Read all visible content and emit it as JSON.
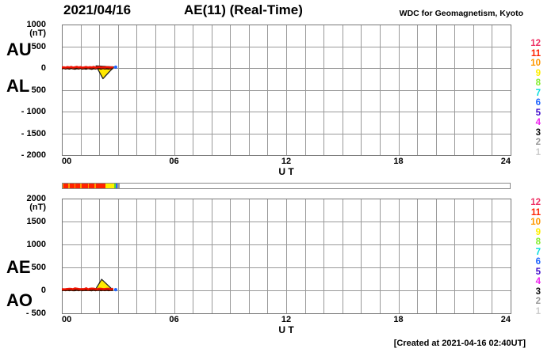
{
  "header": {
    "date": "2021/04/16",
    "title": "AE(11) (Real-Time)",
    "source": "WDC for Geomagnetism, Kyoto"
  },
  "footer": {
    "created": "[Created at 2021-04-16 02:40UT]"
  },
  "axis": {
    "x_ticks": [
      "00",
      "06",
      "12",
      "18",
      "24"
    ],
    "x_label": "U T",
    "unit_label": "(nT)"
  },
  "legend": {
    "station_counts": [
      {
        "n": "12",
        "color": "#ee3366"
      },
      {
        "n": "11",
        "color": "#ff2200"
      },
      {
        "n": "10",
        "color": "#ff9900"
      },
      {
        "n": "9",
        "color": "#ffee00"
      },
      {
        "n": "8",
        "color": "#88ee33"
      },
      {
        "n": "7",
        "color": "#00dddd"
      },
      {
        "n": "6",
        "color": "#2266ff"
      },
      {
        "n": "5",
        "color": "#4411cc"
      },
      {
        "n": "4",
        "color": "#ee22ee"
      },
      {
        "n": "3",
        "color": "#111111"
      },
      {
        "n": "2",
        "color": "#999999"
      },
      {
        "n": "1",
        "color": "#cccccc"
      }
    ]
  },
  "panels": [
    {
      "label_top": "AU",
      "label_bottom": "AL",
      "ymax": 1000,
      "ymin": -2000,
      "ystep": 500,
      "yticks": [
        {
          "v": 1000,
          "t": "1000"
        },
        {
          "v": 500,
          "t": "500"
        },
        {
          "v": 0,
          "t": "0"
        },
        {
          "v": -500,
          "t": "- 500"
        },
        {
          "v": -1000,
          "t": "- 1000"
        },
        {
          "v": -1500,
          "t": "- 1500"
        },
        {
          "v": -2000,
          "t": "- 2000"
        }
      ]
    },
    {
      "label_top": "AE",
      "label_bottom": "AO",
      "ymax": 2000,
      "ymin": -500,
      "ystep": 500,
      "yticks": [
        {
          "v": 2000,
          "t": "2000"
        },
        {
          "v": 1500,
          "t": "1500"
        },
        {
          "v": 1000,
          "t": "1000"
        },
        {
          "v": 500,
          "t": "500"
        },
        {
          "v": 0,
          "t": "0"
        },
        {
          "v": -500,
          "t": "- 500"
        }
      ]
    }
  ],
  "station_bar": {
    "segments": [
      {
        "c": "#ff9900",
        "f": 0.0,
        "t": 0.06
      },
      {
        "c": "#ff2200",
        "f": 0.06,
        "t": 0.3
      },
      {
        "c": "#ff9900",
        "f": 0.3,
        "t": 0.38
      },
      {
        "c": "#ff2200",
        "f": 0.38,
        "t": 0.62
      },
      {
        "c": "#ff9900",
        "f": 0.62,
        "t": 0.68
      },
      {
        "c": "#ff2200",
        "f": 0.68,
        "t": 0.95
      },
      {
        "c": "#ff9900",
        "f": 0.95,
        "t": 1.02
      },
      {
        "c": "#ff2200",
        "f": 1.02,
        "t": 1.35
      },
      {
        "c": "#ff9900",
        "f": 1.35,
        "t": 1.42
      },
      {
        "c": "#ff2200",
        "f": 1.42,
        "t": 1.72
      },
      {
        "c": "#ff9900",
        "f": 1.72,
        "t": 1.78
      },
      {
        "c": "#ff2200",
        "f": 1.78,
        "t": 2.28
      },
      {
        "c": "#ffee00",
        "f": 2.28,
        "t": 2.75
      },
      {
        "c": "#66dd22",
        "f": 2.75,
        "t": 2.83
      },
      {
        "c": "#2266ff",
        "f": 2.83,
        "t": 2.93
      },
      {
        "c": "#999999",
        "f": 2.93,
        "t": 3.07
      }
    ]
  },
  "chart_data": [
    {
      "type": "line",
      "title": "AU / AL indices, 2021/04/16 (Real-Time, 11 stations)",
      "xlabel": "U T",
      "ylabel": "(nT)",
      "xlim": [
        0,
        24
      ],
      "ylim": [
        -2000,
        1000
      ],
      "x_gridstep_hours": 1,
      "y_gridstep": 500,
      "legend_position": "right",
      "x_hours": [
        0,
        0.1,
        0.2,
        0.3,
        0.4,
        0.5,
        0.6,
        0.7,
        0.8,
        0.9,
        1,
        1.1,
        1.2,
        1.3,
        1.4,
        1.5,
        1.6,
        1.7,
        1.8,
        1.9,
        2,
        2.1,
        2.2,
        2.3,
        2.4,
        2.5,
        2.6,
        2.7
      ],
      "series": [
        {
          "name": "AL",
          "color": "#331100",
          "values": [
            -12,
            -5,
            -16,
            -8,
            -19,
            -6,
            -14,
            -22,
            -9,
            -16,
            -5,
            -18,
            -11,
            -20,
            -7,
            -15,
            -23,
            -10,
            -17,
            -6,
            -13,
            -20,
            -8,
            -16,
            -11,
            -19,
            -9,
            -14
          ]
        },
        {
          "name": "AU",
          "color": "#ee1100",
          "values": [
            12,
            18,
            9,
            22,
            15,
            25,
            11,
            19,
            28,
            14,
            21,
            9,
            17,
            24,
            12,
            20,
            15,
            26,
            10,
            18,
            23,
            13,
            19,
            11,
            21,
            16,
            12,
            18
          ]
        }
      ],
      "marker": {
        "type": "pennant-down",
        "fill": "#ffe800",
        "stroke": "#222222",
        "points": [
          [
            1.83,
            50
          ],
          [
            2.78,
            25
          ],
          [
            2.2,
            -245
          ]
        ],
        "dot": {
          "x": 2.88,
          "y": 20,
          "color": "#2266ff"
        }
      }
    },
    {
      "type": "line",
      "title": "AE / AO indices, 2021/04/16 (Real-Time, 11 stations)",
      "xlabel": "U T",
      "ylabel": "(nT)",
      "xlim": [
        0,
        24
      ],
      "ylim": [
        -500,
        2000
      ],
      "x_gridstep_hours": 1,
      "y_gridstep": 500,
      "legend_position": "right",
      "x_hours": [
        0,
        0.1,
        0.2,
        0.3,
        0.4,
        0.5,
        0.6,
        0.7,
        0.8,
        0.9,
        1,
        1.1,
        1.2,
        1.3,
        1.4,
        1.5,
        1.6,
        1.7,
        1.8,
        1.9,
        2,
        2.1,
        2.2,
        2.3,
        2.4,
        2.5,
        2.6,
        2.7
      ],
      "series": [
        {
          "name": "AO",
          "color": "#331100",
          "values": [
            0,
            6,
            -3,
            7,
            -2,
            9,
            -1,
            -1,
            9,
            -1,
            8,
            -4,
            3,
            2,
            2,
            2,
            -4,
            8,
            -3,
            6,
            5,
            -3,
            5,
            -2,
            5,
            -1,
            1,
            2
          ]
        },
        {
          "name": "AE",
          "color": "#ee1100",
          "values": [
            24,
            23,
            25,
            30,
            34,
            31,
            25,
            41,
            37,
            30,
            26,
            27,
            28,
            44,
            19,
            35,
            38,
            36,
            27,
            24,
            36,
            33,
            27,
            27,
            32,
            35,
            21,
            32
          ]
        }
      ],
      "marker": {
        "type": "pennant-up",
        "fill": "#ffe800",
        "stroke": "#222222",
        "points": [
          [
            1.78,
            8
          ],
          [
            2.73,
            8
          ],
          [
            2.13,
            240
          ]
        ],
        "dot": {
          "x": 2.88,
          "y": 15,
          "color": "#2266ff"
        }
      }
    }
  ]
}
